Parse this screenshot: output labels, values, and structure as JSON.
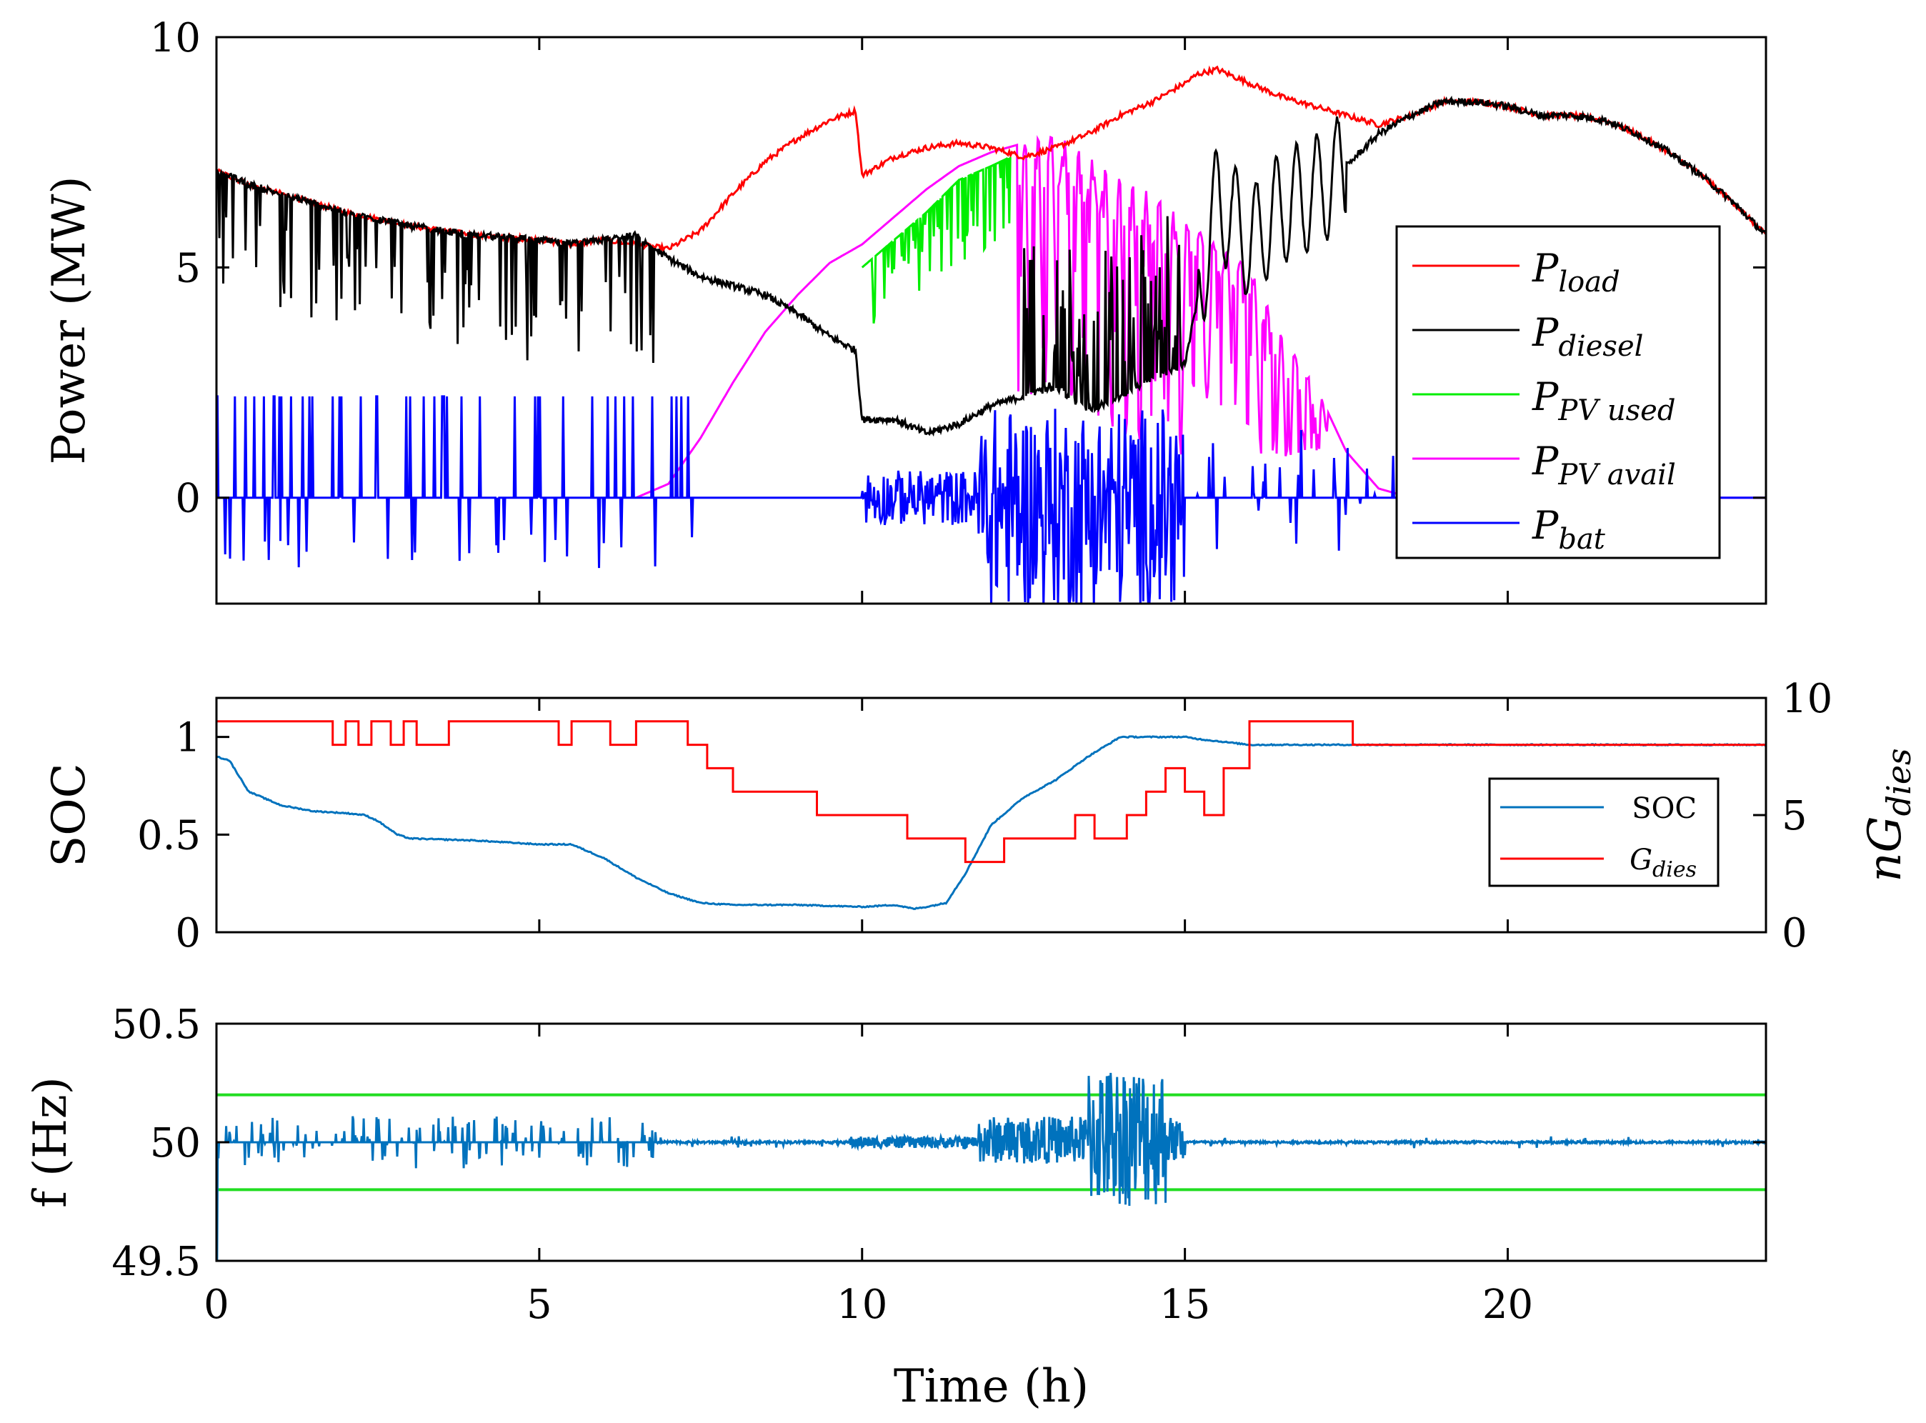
{
  "colors": {
    "load": "#ff0000",
    "diesel": "#000000",
    "pv_used": "#00ee00",
    "pv_avail": "#ff00ff",
    "bat": "#0000ff",
    "soc": "#0072bd",
    "gdies": "#ff0000",
    "freq": "#0072bd",
    "freq_limits": "#22dd22"
  },
  "chart_data": [
    {
      "type": "line",
      "ylabel": "Power (MW)",
      "xlim": [
        0,
        24
      ],
      "ylim": [
        -2.3,
        10
      ],
      "yticks": [
        "0",
        "5",
        "10"
      ],
      "grid": false,
      "legend_position": "right",
      "legend": [
        {
          "base": "P",
          "sub": "load",
          "key": "load"
        },
        {
          "base": "P",
          "sub": "diesel",
          "key": "diesel"
        },
        {
          "base": "P",
          "sub": "PV used",
          "key": "pv_used"
        },
        {
          "base": "P",
          "sub": "PV avail",
          "key": "pv_avail"
        },
        {
          "base": "P",
          "sub": "bat",
          "key": "bat"
        }
      ],
      "series": [
        {
          "key": "load",
          "x": [
            0,
            0.5,
            1,
            2,
            3,
            4,
            5,
            5.5,
            6,
            6.5,
            7,
            7.5,
            8,
            8.5,
            9,
            9.5,
            9.9,
            10,
            10.5,
            11,
            11.5,
            12,
            12.5,
            13,
            13.5,
            14,
            14.5,
            15,
            15.2,
            15.5,
            16,
            16.5,
            17,
            17.5,
            18,
            18.5,
            19,
            19.5,
            20,
            20.5,
            21,
            21.5,
            22,
            22.5,
            23,
            23.5,
            24
          ],
          "y": [
            7.1,
            6.8,
            6.6,
            6.2,
            5.9,
            5.7,
            5.6,
            5.5,
            5.6,
            5.5,
            5.4,
            5.8,
            6.6,
            7.3,
            7.8,
            8.2,
            8.4,
            7.0,
            7.4,
            7.6,
            7.7,
            7.6,
            7.4,
            7.6,
            7.9,
            8.3,
            8.6,
            9.0,
            9.2,
            9.3,
            9.0,
            8.7,
            8.5,
            8.3,
            8.1,
            8.3,
            8.6,
            8.6,
            8.5,
            8.3,
            8.3,
            8.2,
            7.9,
            7.5,
            7.0,
            6.4,
            5.7
          ]
        },
        {
          "key": "diesel",
          "x": [
            0,
            0.5,
            1,
            2,
            3,
            4,
            5,
            5.5,
            6,
            6.5,
            7,
            7.5,
            8,
            8.5,
            9,
            9.5,
            9.9,
            10,
            10.5,
            11,
            11.5,
            12,
            12.5,
            13,
            13.5,
            14,
            14.5,
            15,
            15.5,
            16,
            16.5,
            17,
            17.5,
            18,
            18.5,
            19,
            19.5,
            20,
            20.5,
            21,
            21.5,
            22,
            22.5,
            23,
            23.5,
            24
          ],
          "y": [
            7.1,
            6.8,
            6.6,
            6.2,
            5.9,
            5.7,
            5.6,
            5.5,
            5.6,
            5.7,
            5.2,
            4.8,
            4.6,
            4.4,
            4.0,
            3.5,
            3.2,
            1.7,
            1.7,
            1.4,
            1.6,
            2.0,
            2.2,
            2.4,
            1.9,
            2.2,
            2.6,
            2.9,
            6.5,
            5.5,
            6.3,
            6.6,
            7.2,
            7.9,
            8.3,
            8.6,
            8.6,
            8.5,
            8.3,
            8.3,
            8.2,
            7.9,
            7.5,
            7.0,
            6.4,
            5.7
          ]
        },
        {
          "key": "pv_used",
          "x": [
            10,
            10.5,
            11,
            11.5,
            12,
            12.3
          ],
          "y": [
            5.0,
            5.6,
            6.2,
            6.9,
            7.2,
            7.4
          ]
        },
        {
          "key": "pv_avail",
          "x": [
            6.5,
            7,
            7.5,
            8,
            8.5,
            9,
            9.5,
            10,
            10.5,
            11,
            11.5,
            12,
            12.5,
            13,
            13.5,
            14,
            14.5,
            15,
            15.5,
            16,
            16.5,
            17,
            17.5,
            18,
            18.5,
            19,
            24
          ],
          "y": [
            0,
            0.3,
            1.3,
            2.5,
            3.6,
            4.4,
            5.1,
            5.5,
            6.1,
            6.7,
            7.2,
            7.5,
            7.7,
            7.9,
            7.4,
            6.9,
            6.6,
            6.0,
            5.5,
            5.0,
            3.5,
            2.5,
            1.0,
            0.2,
            0,
            0,
            0
          ]
        },
        {
          "key": "bat",
          "x": [
            0,
            24
          ],
          "y": [
            0,
            0
          ]
        }
      ]
    },
    {
      "type": "line",
      "ylabel": "SOC",
      "ylabel_right": "nG",
      "ylabel_right_sub": "dies",
      "xlim": [
        0,
        24
      ],
      "ylim": [
        0,
        1.2
      ],
      "ylim_right": [
        0,
        10
      ],
      "yticks": [
        "0",
        "0.5",
        "1"
      ],
      "yticks_right": [
        "0",
        "5",
        "10"
      ],
      "grid": false,
      "legend_position": "right",
      "legend": [
        {
          "label": "SOC",
          "key": "soc"
        },
        {
          "base": "G",
          "sub": "dies",
          "key": "gdies"
        }
      ],
      "series": [
        {
          "key": "soc",
          "axis": "left",
          "x": [
            0,
            0.2,
            0.5,
            1,
            1.5,
            2,
            2.3,
            2.5,
            2.8,
            3,
            4,
            5,
            5.5,
            6,
            6.5,
            7,
            7.5,
            8,
            9,
            10,
            10.5,
            10.8,
            11,
            11.3,
            11.6,
            12,
            12.5,
            13,
            13.5,
            14,
            14.5,
            15,
            15.2,
            16,
            17,
            18,
            24
          ],
          "y": [
            0.9,
            0.88,
            0.72,
            0.65,
            0.62,
            0.61,
            0.6,
            0.57,
            0.5,
            0.48,
            0.47,
            0.45,
            0.45,
            0.38,
            0.28,
            0.2,
            0.15,
            0.14,
            0.14,
            0.13,
            0.14,
            0.12,
            0.13,
            0.15,
            0.3,
            0.55,
            0.69,
            0.78,
            0.9,
            1.0,
            1.0,
            1.0,
            0.99,
            0.96,
            0.96,
            0.96,
            0.96
          ]
        },
        {
          "key": "gdies",
          "axis": "right",
          "x": [
            0,
            1.8,
            2.0,
            2.2,
            2.4,
            2.7,
            2.9,
            3.1,
            3.6,
            5.3,
            5.5,
            6.1,
            6.5,
            7.3,
            7.6,
            8.0,
            8.5,
            9.3,
            9.9,
            10.7,
            11.6,
            12.2,
            13.3,
            13.6,
            14.1,
            14.4,
            14.7,
            15.0,
            15.3,
            15.6,
            16.0,
            17.0,
            17.6,
            24
          ],
          "y": [
            9,
            8,
            9,
            8,
            9,
            8,
            9,
            8,
            9,
            8,
            9,
            8,
            9,
            8,
            7,
            6,
            6,
            5,
            5,
            4,
            3,
            4,
            5,
            4,
            5,
            6,
            7,
            6,
            5,
            7,
            9,
            9,
            8,
            9
          ]
        }
      ]
    },
    {
      "type": "line",
      "ylabel": "f (Hz)",
      "xlabel": "Time (h)",
      "xlim": [
        0,
        24
      ],
      "ylim": [
        49.5,
        50.5
      ],
      "yticks": [
        "49.5",
        "50",
        "50.5"
      ],
      "xticks": [
        "0",
        "5",
        "10",
        "15",
        "20"
      ],
      "grid": false,
      "limits": [
        49.8,
        50.2
      ],
      "series": [
        {
          "key": "freq",
          "x": [
            0,
            24
          ],
          "y": [
            50,
            50
          ]
        }
      ]
    }
  ]
}
